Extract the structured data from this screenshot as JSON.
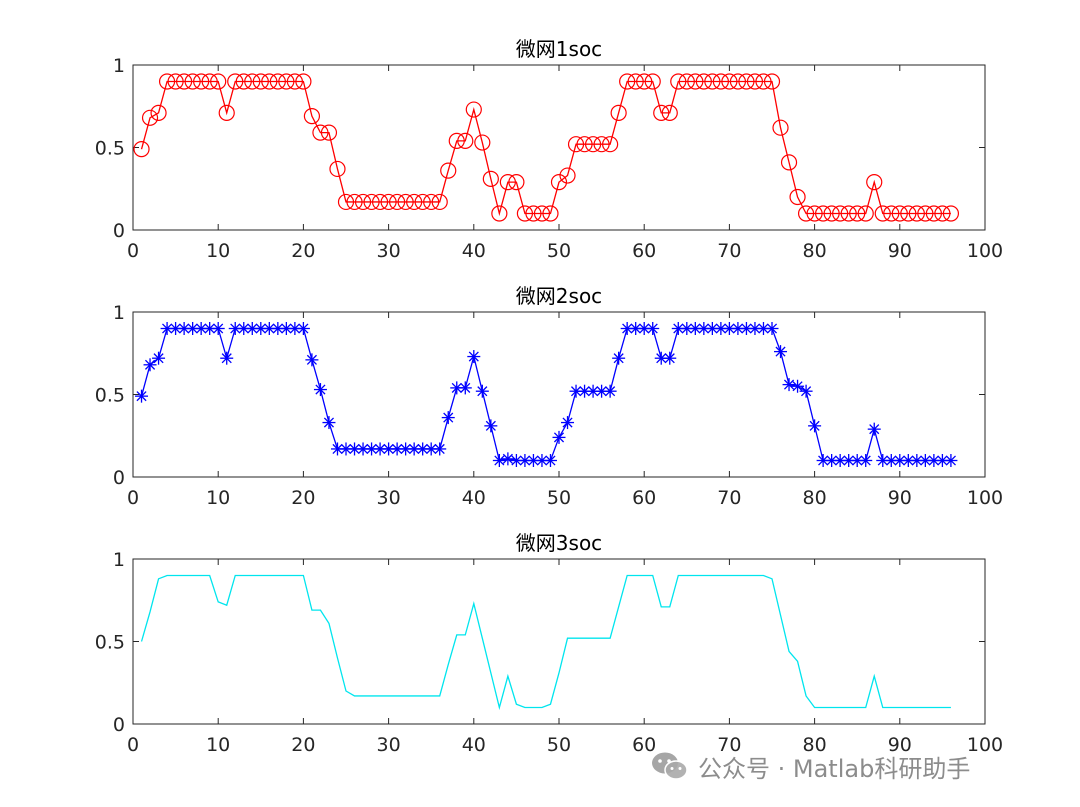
{
  "chart_data": [
    {
      "type": "line",
      "title": "微网1soc",
      "color": "#ff0000",
      "marker": "circle",
      "xlim": [
        0,
        100
      ],
      "ylim": [
        0,
        1
      ],
      "xticks": [
        0,
        10,
        20,
        30,
        40,
        50,
        60,
        70,
        80,
        90,
        100
      ],
      "yticks": [
        0,
        0.5,
        1
      ],
      "ytick_labels": [
        "0",
        "0.5",
        "1"
      ],
      "x": [
        1,
        2,
        3,
        4,
        5,
        6,
        7,
        8,
        9,
        10,
        11,
        12,
        13,
        14,
        15,
        16,
        17,
        18,
        19,
        20,
        21,
        22,
        23,
        24,
        25,
        26,
        27,
        28,
        29,
        30,
        31,
        32,
        33,
        34,
        35,
        36,
        37,
        38,
        39,
        40,
        41,
        42,
        43,
        44,
        45,
        46,
        47,
        48,
        49,
        50,
        51,
        52,
        53,
        54,
        55,
        56,
        57,
        58,
        59,
        60,
        61,
        62,
        63,
        64,
        65,
        66,
        67,
        68,
        69,
        70,
        71,
        72,
        73,
        74,
        75,
        76,
        77,
        78,
        79,
        80,
        81,
        82,
        83,
        84,
        85,
        86,
        87,
        88,
        89,
        90,
        91,
        92,
        93,
        94,
        95,
        96
      ],
      "y": [
        0.49,
        0.68,
        0.71,
        0.9,
        0.9,
        0.9,
        0.9,
        0.9,
        0.9,
        0.9,
        0.71,
        0.9,
        0.9,
        0.9,
        0.9,
        0.9,
        0.9,
        0.9,
        0.9,
        0.9,
        0.69,
        0.59,
        0.59,
        0.37,
        0.17,
        0.17,
        0.17,
        0.17,
        0.17,
        0.17,
        0.17,
        0.17,
        0.17,
        0.17,
        0.17,
        0.17,
        0.36,
        0.54,
        0.54,
        0.73,
        0.53,
        0.31,
        0.1,
        0.29,
        0.29,
        0.1,
        0.1,
        0.1,
        0.1,
        0.29,
        0.33,
        0.52,
        0.52,
        0.52,
        0.52,
        0.52,
        0.71,
        0.9,
        0.9,
        0.9,
        0.9,
        0.71,
        0.71,
        0.9,
        0.9,
        0.9,
        0.9,
        0.9,
        0.9,
        0.9,
        0.9,
        0.9,
        0.9,
        0.9,
        0.9,
        0.62,
        0.41,
        0.2,
        0.1,
        0.1,
        0.1,
        0.1,
        0.1,
        0.1,
        0.1,
        0.1,
        0.29,
        0.1,
        0.1,
        0.1,
        0.1,
        0.1,
        0.1,
        0.1,
        0.1,
        0.1
      ]
    },
    {
      "type": "line",
      "title": "微网2soc",
      "color": "#0000ff",
      "marker": "asterisk",
      "xlim": [
        0,
        100
      ],
      "ylim": [
        0,
        1
      ],
      "xticks": [
        0,
        10,
        20,
        30,
        40,
        50,
        60,
        70,
        80,
        90,
        100
      ],
      "yticks": [
        0,
        0.5,
        1
      ],
      "ytick_labels": [
        "0",
        "0.5",
        "1"
      ],
      "x": [
        1,
        2,
        3,
        4,
        5,
        6,
        7,
        8,
        9,
        10,
        11,
        12,
        13,
        14,
        15,
        16,
        17,
        18,
        19,
        20,
        21,
        22,
        23,
        24,
        25,
        26,
        27,
        28,
        29,
        30,
        31,
        32,
        33,
        34,
        35,
        36,
        37,
        38,
        39,
        40,
        41,
        42,
        43,
        44,
        45,
        46,
        47,
        48,
        49,
        50,
        51,
        52,
        53,
        54,
        55,
        56,
        57,
        58,
        59,
        60,
        61,
        62,
        63,
        64,
        65,
        66,
        67,
        68,
        69,
        70,
        71,
        72,
        73,
        74,
        75,
        76,
        77,
        78,
        79,
        80,
        81,
        82,
        83,
        84,
        85,
        86,
        87,
        88,
        89,
        90,
        91,
        92,
        93,
        94,
        95,
        96
      ],
      "y": [
        0.49,
        0.68,
        0.72,
        0.9,
        0.9,
        0.9,
        0.9,
        0.9,
        0.9,
        0.9,
        0.72,
        0.9,
        0.9,
        0.9,
        0.9,
        0.9,
        0.9,
        0.9,
        0.9,
        0.9,
        0.71,
        0.53,
        0.33,
        0.17,
        0.17,
        0.17,
        0.17,
        0.17,
        0.17,
        0.17,
        0.17,
        0.17,
        0.17,
        0.17,
        0.17,
        0.17,
        0.36,
        0.54,
        0.54,
        0.73,
        0.52,
        0.31,
        0.1,
        0.11,
        0.1,
        0.1,
        0.1,
        0.1,
        0.1,
        0.24,
        0.33,
        0.52,
        0.52,
        0.52,
        0.52,
        0.52,
        0.72,
        0.9,
        0.9,
        0.9,
        0.9,
        0.72,
        0.72,
        0.9,
        0.9,
        0.9,
        0.9,
        0.9,
        0.9,
        0.9,
        0.9,
        0.9,
        0.9,
        0.9,
        0.9,
        0.76,
        0.56,
        0.55,
        0.52,
        0.31,
        0.1,
        0.1,
        0.1,
        0.1,
        0.1,
        0.1,
        0.29,
        0.1,
        0.1,
        0.1,
        0.1,
        0.1,
        0.1,
        0.1,
        0.1,
        0.1
      ]
    },
    {
      "type": "line",
      "title": "微网3soc",
      "color": "#00e5ee",
      "marker": "none",
      "xlim": [
        0,
        100
      ],
      "ylim": [
        0,
        1
      ],
      "xticks": [
        0,
        10,
        20,
        30,
        40,
        50,
        60,
        70,
        80,
        90,
        100
      ],
      "yticks": [
        0,
        0.5,
        1
      ],
      "ytick_labels": [
        "0",
        "0.5",
        "1"
      ],
      "x": [
        1,
        2,
        3,
        4,
        5,
        6,
        7,
        8,
        9,
        10,
        11,
        12,
        13,
        14,
        15,
        16,
        17,
        18,
        19,
        20,
        21,
        22,
        23,
        24,
        25,
        26,
        27,
        28,
        29,
        30,
        31,
        32,
        33,
        34,
        35,
        36,
        37,
        38,
        39,
        40,
        41,
        42,
        43,
        44,
        45,
        46,
        47,
        48,
        49,
        50,
        51,
        52,
        53,
        54,
        55,
        56,
        57,
        58,
        59,
        60,
        61,
        62,
        63,
        64,
        65,
        66,
        67,
        68,
        69,
        70,
        71,
        72,
        73,
        74,
        75,
        76,
        77,
        78,
        79,
        80,
        81,
        82,
        83,
        84,
        85,
        86,
        87,
        88,
        89,
        90,
        91,
        92,
        93,
        94,
        95,
        96
      ],
      "y": [
        0.5,
        0.68,
        0.88,
        0.9,
        0.9,
        0.9,
        0.9,
        0.9,
        0.9,
        0.74,
        0.72,
        0.9,
        0.9,
        0.9,
        0.9,
        0.9,
        0.9,
        0.9,
        0.9,
        0.9,
        0.69,
        0.69,
        0.61,
        0.4,
        0.2,
        0.17,
        0.17,
        0.17,
        0.17,
        0.17,
        0.17,
        0.17,
        0.17,
        0.17,
        0.17,
        0.17,
        0.36,
        0.54,
        0.54,
        0.73,
        0.52,
        0.31,
        0.1,
        0.29,
        0.12,
        0.1,
        0.1,
        0.1,
        0.12,
        0.31,
        0.52,
        0.52,
        0.52,
        0.52,
        0.52,
        0.52,
        0.71,
        0.9,
        0.9,
        0.9,
        0.9,
        0.71,
        0.71,
        0.9,
        0.9,
        0.9,
        0.9,
        0.9,
        0.9,
        0.9,
        0.9,
        0.9,
        0.9,
        0.9,
        0.88,
        0.66,
        0.44,
        0.38,
        0.17,
        0.1,
        0.1,
        0.1,
        0.1,
        0.1,
        0.1,
        0.1,
        0.29,
        0.1,
        0.1,
        0.1,
        0.1,
        0.1,
        0.1,
        0.1,
        0.1,
        0.1
      ]
    }
  ],
  "watermark": {
    "text": "公众号 · Matlab科研助手",
    "icon": "wechat-icon"
  }
}
